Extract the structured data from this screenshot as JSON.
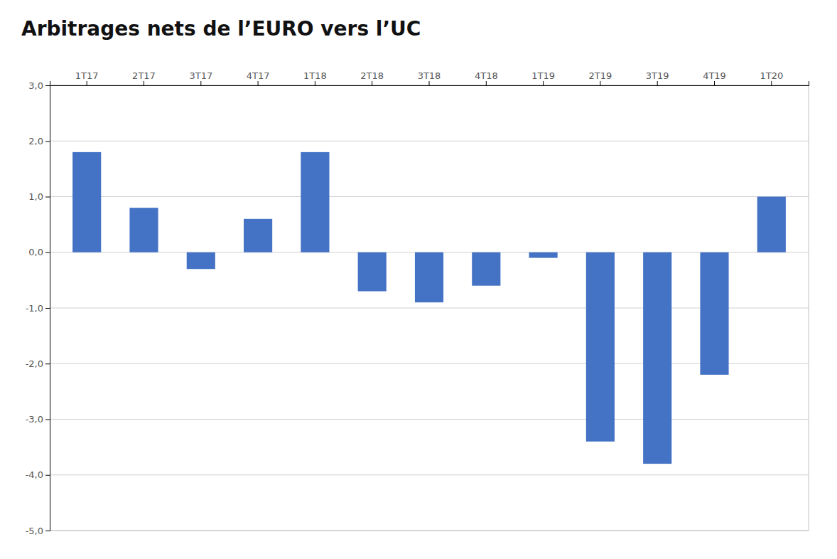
{
  "chart_data": {
    "type": "bar",
    "title": "Arbitrages nets de l’EURO vers l’UC",
    "categories": [
      "1T17",
      "2T17",
      "3T17",
      "4T17",
      "1T18",
      "2T18",
      "3T18",
      "4T18",
      "1T19",
      "2T19",
      "3T19",
      "4T19",
      "1T20"
    ],
    "values": [
      1.8,
      0.8,
      -0.3,
      0.6,
      1.8,
      -0.7,
      -0.9,
      -0.6,
      -0.1,
      -3.4,
      -3.8,
      -2.2,
      1.0
    ],
    "color": "#4472C4",
    "ylim": [
      -5.0,
      3.0
    ],
    "yticks": [
      {
        "value": -5.0,
        "label": "-5,0"
      },
      {
        "value": -4.0,
        "label": "-4,0"
      },
      {
        "value": -3.0,
        "label": "-3,0"
      },
      {
        "value": -2.0,
        "label": "-2,0"
      },
      {
        "value": -1.0,
        "label": "-1,0"
      },
      {
        "value": 0.0,
        "label": "0,0"
      },
      {
        "value": 1.0,
        "label": "1,0"
      },
      {
        "value": 2.0,
        "label": "2,0"
      },
      {
        "value": 3.0,
        "label": "3,0"
      }
    ],
    "grid": true
  }
}
